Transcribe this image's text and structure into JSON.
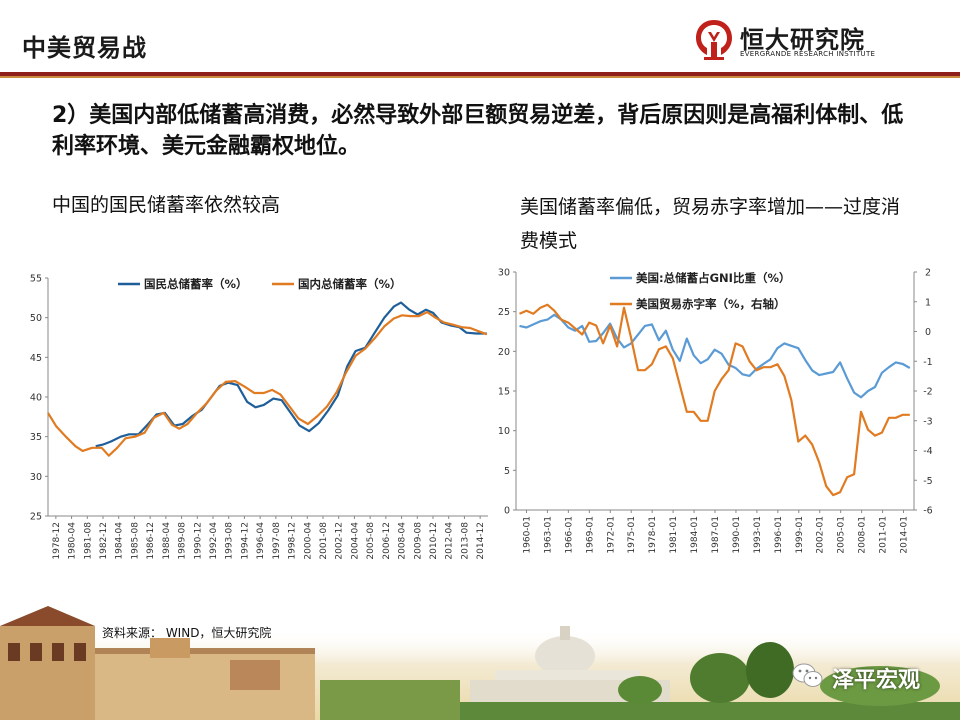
{
  "header": {
    "title": "中美贸易战",
    "logo_text": "恒大研究院",
    "logo_sub": "EVERGRANDE RESEARCH INSTITUTE"
  },
  "headline": "2）美国内部低储蓄高消费，必然导致外部巨额贸易逆差，背后原因则是高福利体制、低利率环境、美元金融霸权地位。",
  "left_subtitle": "中国的国民储蓄率依然较高",
  "right_subtitle": "美国储蓄率偏低，贸易赤字率增加——过度消费模式",
  "source": "资料来源： WIND，恒大研究院",
  "watermark": "泽平宏观",
  "colors": {
    "brand_red": "#8e1f1b",
    "series_blue": "#1f5f99",
    "series_orange": "#e07b22",
    "series_lightblue": "#5b9bd5"
  },
  "chart_data": [
    {
      "type": "line",
      "title": "",
      "xlabel": "",
      "ylabel": "",
      "ylim": [
        25,
        55
      ],
      "yticks": [
        25,
        30,
        35,
        40,
        45,
        50,
        55
      ],
      "grid": false,
      "legend": "top-left",
      "tick_labels": [
        "1978-12",
        "1980-04",
        "1981-08",
        "1982-12",
        "1984-04",
        "1985-08",
        "1986-12",
        "1988-04",
        "1989-08",
        "1990-12",
        "1992-04",
        "1993-08",
        "1994-12",
        "1996-04",
        "1997-08",
        "1998-12",
        "2000-04",
        "2001-08",
        "2002-12",
        "2004-04",
        "2005-08",
        "2006-12",
        "2008-04",
        "2009-08",
        "2010-12",
        "2012-04",
        "2013-08",
        "2014-12"
      ],
      "x_range": [
        1978.9,
        2015.8
      ],
      "series": [
        {
          "name": "国民总储蓄率（%）",
          "color": "#1f5f99",
          "points": [
            [
              1982.9,
              33.8
            ],
            [
              1983.5,
              34.0
            ],
            [
              1984.2,
              34.4
            ],
            [
              1985.0,
              35.0
            ],
            [
              1985.7,
              35.3
            ],
            [
              1986.5,
              35.3
            ],
            [
              1987.3,
              36.6
            ],
            [
              1988.0,
              37.8
            ],
            [
              1988.7,
              38.0
            ],
            [
              1989.5,
              36.4
            ],
            [
              1990.2,
              36.6
            ],
            [
              1991.0,
              37.6
            ],
            [
              1991.8,
              38.4
            ],
            [
              1992.6,
              40.0
            ],
            [
              1993.3,
              41.4
            ],
            [
              1994.0,
              41.8
            ],
            [
              1994.8,
              41.5
            ],
            [
              1995.6,
              39.4
            ],
            [
              1996.3,
              38.7
            ],
            [
              1997.0,
              39.0
            ],
            [
              1997.8,
              39.8
            ],
            [
              1998.5,
              39.6
            ],
            [
              1999.3,
              37.9
            ],
            [
              2000.0,
              36.4
            ],
            [
              2000.8,
              35.7
            ],
            [
              2001.6,
              36.7
            ],
            [
              2002.4,
              38.3
            ],
            [
              2003.2,
              40.2
            ],
            [
              2004.0,
              43.9
            ],
            [
              2004.7,
              45.8
            ],
            [
              2005.5,
              46.2
            ],
            [
              2006.3,
              48.1
            ],
            [
              2007.1,
              50.0
            ],
            [
              2007.9,
              51.4
            ],
            [
              2008.5,
              51.9
            ],
            [
              2009.2,
              51.0
            ],
            [
              2009.9,
              50.4
            ],
            [
              2010.6,
              51.0
            ],
            [
              2011.2,
              50.6
            ],
            [
              2011.9,
              49.4
            ],
            [
              2012.7,
              49.0
            ],
            [
              2013.4,
              48.8
            ],
            [
              2014.0,
              48.1
            ],
            [
              2014.8,
              48.0
            ],
            [
              2015.7,
              48.0
            ]
          ]
        },
        {
          "name": "国内总储蓄率（%）",
          "color": "#e07b22",
          "points": [
            [
              1978.9,
              38.0
            ],
            [
              1979.6,
              36.3
            ],
            [
              1980.4,
              35.0
            ],
            [
              1981.2,
              33.8
            ],
            [
              1981.8,
              33.2
            ],
            [
              1982.6,
              33.6
            ],
            [
              1983.4,
              33.6
            ],
            [
              1984.0,
              32.6
            ],
            [
              1984.7,
              33.6
            ],
            [
              1985.4,
              34.8
            ],
            [
              1986.2,
              35.0
            ],
            [
              1987.0,
              35.5
            ],
            [
              1987.8,
              37.4
            ],
            [
              1988.6,
              38.0
            ],
            [
              1989.3,
              36.5
            ],
            [
              1989.9,
              36.0
            ],
            [
              1990.6,
              36.6
            ],
            [
              1991.4,
              38.0
            ],
            [
              1992.2,
              39.2
            ],
            [
              1993.0,
              40.8
            ],
            [
              1993.8,
              41.9
            ],
            [
              1994.6,
              42.0
            ],
            [
              1995.4,
              41.3
            ],
            [
              1996.2,
              40.5
            ],
            [
              1997.0,
              40.5
            ],
            [
              1997.7,
              40.9
            ],
            [
              1998.4,
              40.3
            ],
            [
              1999.2,
              38.7
            ],
            [
              1999.9,
              37.3
            ],
            [
              2000.7,
              36.6
            ],
            [
              2001.5,
              37.6
            ],
            [
              2002.3,
              38.8
            ],
            [
              2003.1,
              40.6
            ],
            [
              2003.9,
              43.1
            ],
            [
              2004.7,
              45.2
            ],
            [
              2005.5,
              46.1
            ],
            [
              2006.3,
              47.4
            ],
            [
              2007.1,
              48.9
            ],
            [
              2007.9,
              49.9
            ],
            [
              2008.6,
              50.3
            ],
            [
              2009.3,
              50.2
            ],
            [
              2010.0,
              50.2
            ],
            [
              2010.7,
              50.7
            ],
            [
              2011.4,
              50.0
            ],
            [
              2012.1,
              49.4
            ],
            [
              2012.9,
              49.1
            ],
            [
              2013.6,
              48.8
            ],
            [
              2014.3,
              48.7
            ],
            [
              2015.0,
              48.3
            ],
            [
              2015.7,
              47.9
            ]
          ]
        }
      ]
    },
    {
      "type": "line",
      "title": "",
      "xlabel": "",
      "ylabel": "",
      "ylim": [
        0,
        30
      ],
      "yticks": [
        0,
        5,
        10,
        15,
        20,
        25,
        30
      ],
      "ylim_right": [
        -6,
        2
      ],
      "yticks_right": [
        -6,
        -5,
        -4,
        -3,
        -2,
        -1,
        0,
        1,
        2
      ],
      "grid": false,
      "legend": "top-left",
      "tick_labels": [
        "1960-01",
        "1963-01",
        "1966-01",
        "1969-01",
        "1972-01",
        "1975-01",
        "1978-01",
        "1981-01",
        "1984-01",
        "1987-01",
        "1990-01",
        "1993-01",
        "1996-01",
        "1999-01",
        "2002-01",
        "2005-01",
        "2008-01",
        "2011-01",
        "2014-01"
      ],
      "x_range": [
        1959.5,
        2016.6
      ],
      "series": [
        {
          "name": "美国:总储蓄占GNI比重（%）",
          "color": "#5b9bd5",
          "axis": "left",
          "points": [
            [
              1960,
              23.2
            ],
            [
              1961,
              23.0
            ],
            [
              1962,
              23.4
            ],
            [
              1963,
              23.8
            ],
            [
              1964,
              24.0
            ],
            [
              1965,
              24.6
            ],
            [
              1966,
              24.0
            ],
            [
              1967,
              23.0
            ],
            [
              1968,
              22.6
            ],
            [
              1969,
              23.2
            ],
            [
              1970,
              21.2
            ],
            [
              1971,
              21.3
            ],
            [
              1972,
              22.3
            ],
            [
              1973,
              23.5
            ],
            [
              1974,
              21.6
            ],
            [
              1975,
              20.5
            ],
            [
              1976,
              21.0
            ],
            [
              1977,
              22.1
            ],
            [
              1978,
              23.2
            ],
            [
              1979,
              23.4
            ],
            [
              1980,
              21.4
            ],
            [
              1981,
              22.6
            ],
            [
              1982,
              20.2
            ],
            [
              1983,
              18.8
            ],
            [
              1984,
              21.6
            ],
            [
              1985,
              19.5
            ],
            [
              1986,
              18.5
            ],
            [
              1987,
              19.0
            ],
            [
              1988,
              20.2
            ],
            [
              1989,
              19.7
            ],
            [
              1990,
              18.3
            ],
            [
              1991,
              17.9
            ],
            [
              1992,
              17.1
            ],
            [
              1993,
              16.9
            ],
            [
              1994,
              17.8
            ],
            [
              1995,
              18.4
            ],
            [
              1996,
              19.0
            ],
            [
              1997,
              20.4
            ],
            [
              1998,
              21.0
            ],
            [
              1999,
              20.7
            ],
            [
              2000,
              20.4
            ],
            [
              2001,
              18.9
            ],
            [
              2002,
              17.6
            ],
            [
              2003,
              17.0
            ],
            [
              2004,
              17.2
            ],
            [
              2005,
              17.4
            ],
            [
              2006,
              18.6
            ],
            [
              2007,
              16.6
            ],
            [
              2008,
              14.8
            ],
            [
              2009,
              14.2
            ],
            [
              2010,
              15.0
            ],
            [
              2011,
              15.5
            ],
            [
              2012,
              17.3
            ],
            [
              2013,
              18.0
            ],
            [
              2014,
              18.6
            ],
            [
              2015,
              18.4
            ],
            [
              2016,
              17.9
            ]
          ]
        },
        {
          "name": "美国贸易赤字率（%，右轴）",
          "color": "#e07b22",
          "axis": "right",
          "points": [
            [
              1960,
              0.6
            ],
            [
              1961,
              0.7
            ],
            [
              1962,
              0.6
            ],
            [
              1963,
              0.8
            ],
            [
              1964,
              0.9
            ],
            [
              1965,
              0.7
            ],
            [
              1966,
              0.4
            ],
            [
              1967,
              0.3
            ],
            [
              1968,
              0.1
            ],
            [
              1969,
              -0.1
            ],
            [
              1970,
              0.3
            ],
            [
              1971,
              0.2
            ],
            [
              1972,
              -0.4
            ],
            [
              1973,
              0.2
            ],
            [
              1974,
              -0.5
            ],
            [
              1975,
              0.8
            ],
            [
              1976,
              -0.2
            ],
            [
              1977,
              -1.3
            ],
            [
              1978,
              -1.3
            ],
            [
              1979,
              -1.1
            ],
            [
              1980,
              -0.6
            ],
            [
              1981,
              -0.5
            ],
            [
              1982,
              -0.9
            ],
            [
              1983,
              -1.8
            ],
            [
              1984,
              -2.7
            ],
            [
              1985,
              -2.7
            ],
            [
              1986,
              -3.0
            ],
            [
              1987,
              -3.0
            ],
            [
              1988,
              -2.0
            ],
            [
              1989,
              -1.6
            ],
            [
              1990,
              -1.3
            ],
            [
              1991,
              -0.4
            ],
            [
              1992,
              -0.5
            ],
            [
              1993,
              -1.0
            ],
            [
              1994,
              -1.3
            ],
            [
              1995,
              -1.2
            ],
            [
              1996,
              -1.2
            ],
            [
              1997,
              -1.1
            ],
            [
              1998,
              -1.5
            ],
            [
              1999,
              -2.3
            ],
            [
              2000,
              -3.7
            ],
            [
              2001,
              -3.5
            ],
            [
              2002,
              -3.8
            ],
            [
              2003,
              -4.4
            ],
            [
              2004,
              -5.2
            ],
            [
              2005,
              -5.5
            ],
            [
              2006,
              -5.4
            ],
            [
              2007,
              -4.9
            ],
            [
              2008,
              -4.8
            ],
            [
              2009,
              -2.7
            ],
            [
              2010,
              -3.3
            ],
            [
              2011,
              -3.5
            ],
            [
              2012,
              -3.4
            ],
            [
              2013,
              -2.9
            ],
            [
              2014,
              -2.9
            ],
            [
              2015,
              -2.8
            ],
            [
              2016,
              -2.8
            ]
          ]
        }
      ]
    }
  ]
}
